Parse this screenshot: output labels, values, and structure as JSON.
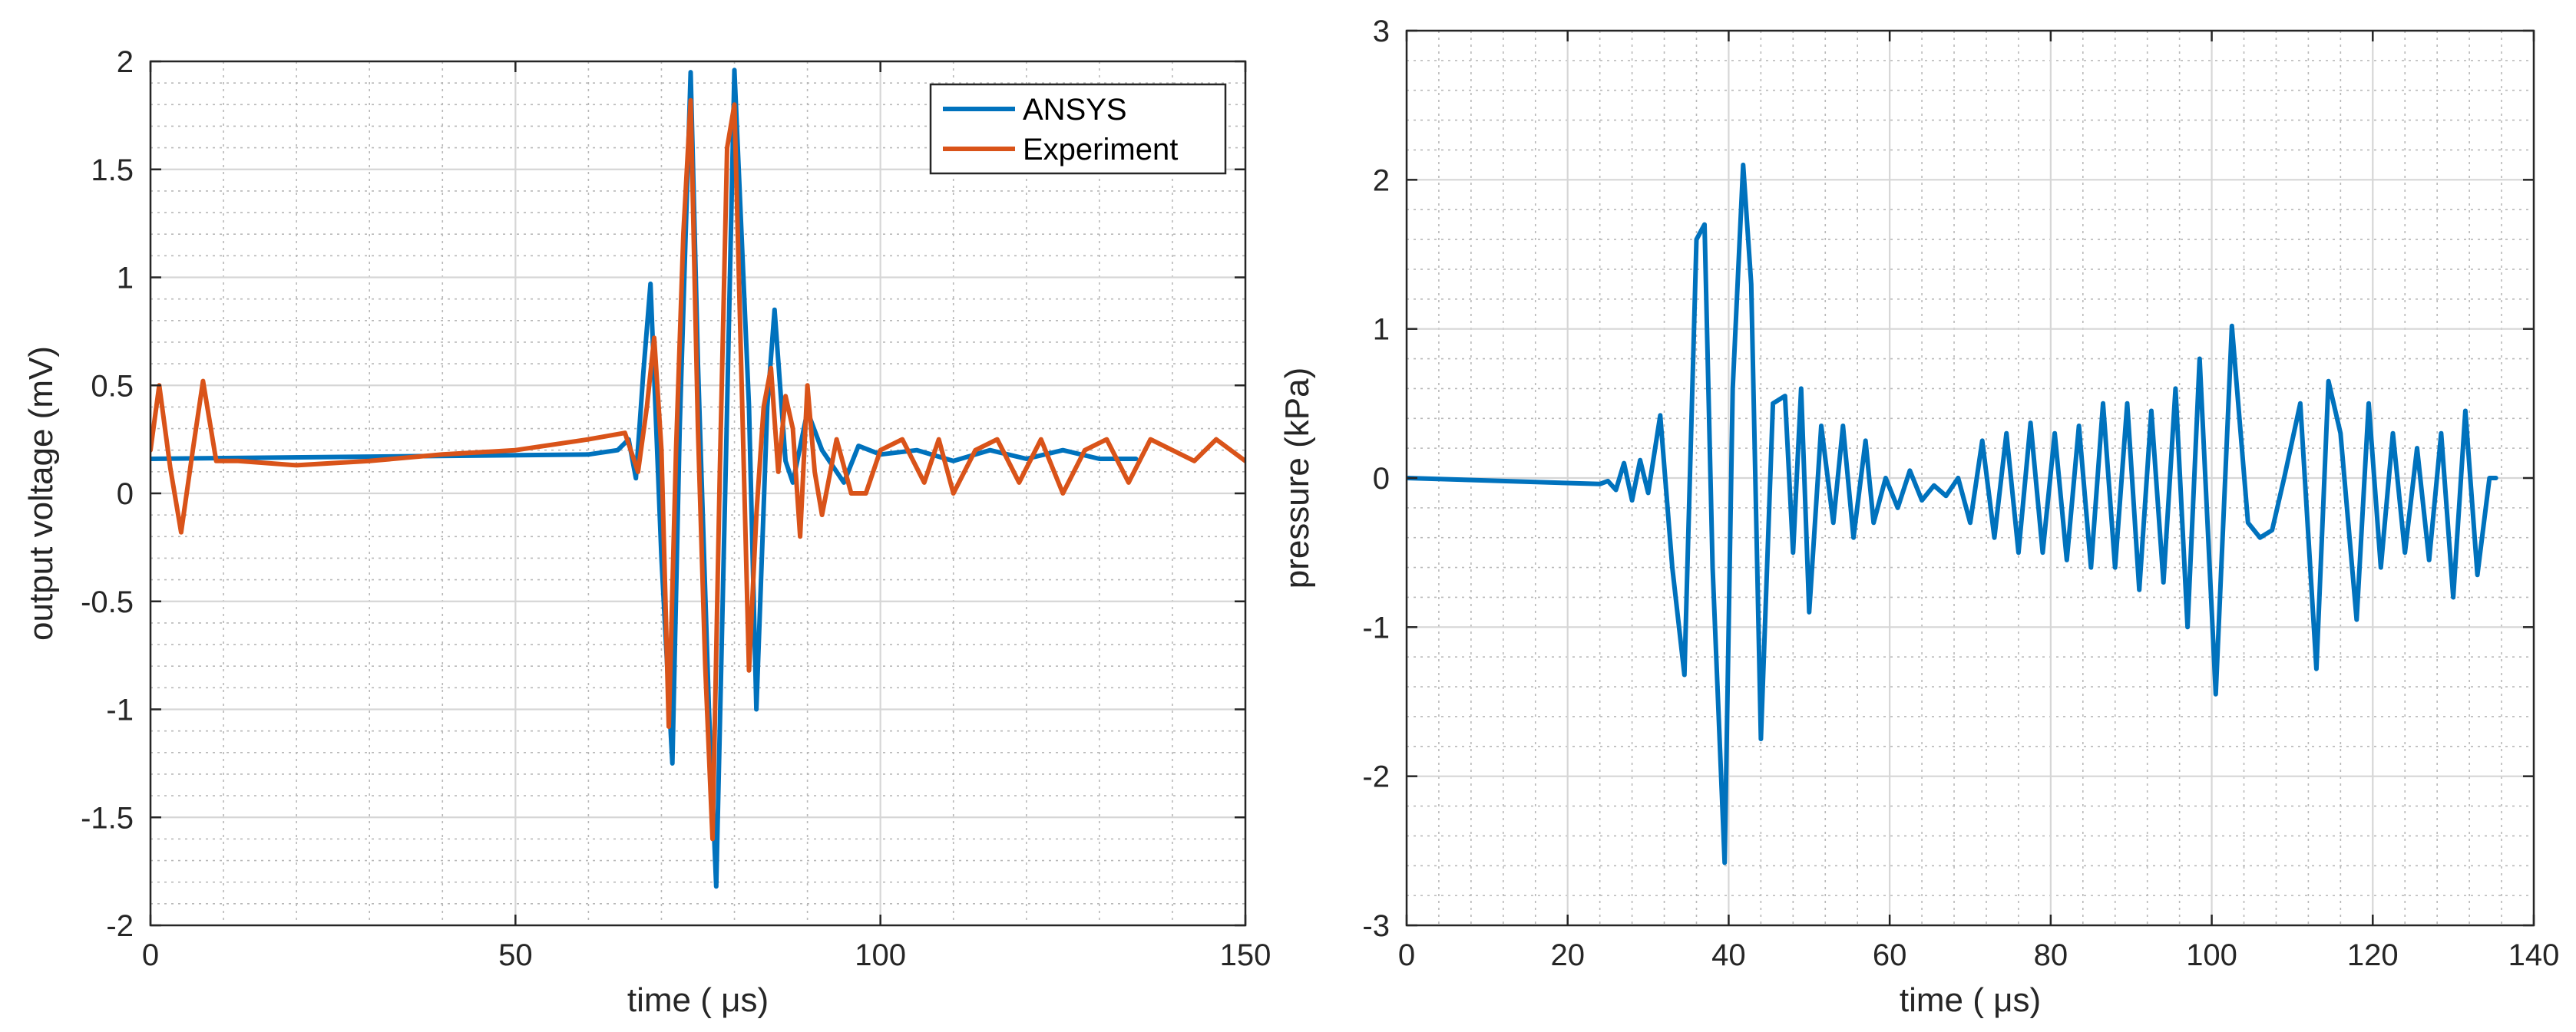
{
  "chart_data": [
    {
      "type": "line",
      "xlabel": "time ( μs)",
      "ylabel": "output voltage (mV)",
      "xlim": [
        0,
        150
      ],
      "ylim": [
        -2,
        2
      ],
      "xticks": [
        0,
        50,
        100,
        150
      ],
      "yticks": [
        -2,
        -1.5,
        -1,
        -0.5,
        0,
        0.5,
        1,
        1.5,
        2
      ],
      "xtick_labels": [
        "0",
        "50",
        "100",
        "150"
      ],
      "ytick_labels": [
        "-2",
        "-1.5",
        "-1",
        "-0.5",
        "0",
        "0.5",
        "1",
        "1.5",
        "2"
      ],
      "grid": true,
      "minor_grid": true,
      "legend": {
        "location": "top-right",
        "entries": [
          "ANSYS",
          "Experiment"
        ]
      },
      "series": [
        {
          "name": "ANSYS",
          "color": "#0072BD",
          "x": [
            0,
            60,
            64,
            65.5,
            66.5,
            67.5,
            68.5,
            70,
            71.5,
            72.5,
            74,
            75,
            76.5,
            77.5,
            79,
            80,
            82,
            83,
            84.5,
            85.5,
            87,
            88,
            90,
            92,
            95,
            97,
            100,
            105,
            110,
            115,
            120,
            125,
            130,
            135
          ],
          "values": [
            0.16,
            0.18,
            0.2,
            0.25,
            0.07,
            0.55,
            0.97,
            -0.3,
            -1.25,
            0.3,
            1.95,
            0.6,
            -1.0,
            -1.82,
            0.4,
            1.96,
            0.4,
            -1.0,
            0.4,
            0.85,
            0.15,
            0.05,
            0.38,
            0.2,
            0.05,
            0.22,
            0.18,
            0.2,
            0.15,
            0.2,
            0.16,
            0.2,
            0.16,
            0.16
          ]
        },
        {
          "name": "Experiment",
          "color": "#D95319",
          "x": [
            0,
            1.2,
            2.7,
            4.2,
            5.8,
            7.2,
            9,
            12,
            20,
            30,
            40,
            50,
            60,
            65,
            66.8,
            68,
            69,
            70,
            71,
            72,
            73,
            74,
            75,
            76,
            77,
            78,
            79,
            80,
            81,
            82,
            83,
            84,
            85,
            86,
            87,
            88,
            89,
            90,
            91,
            92,
            94,
            96,
            98,
            100,
            103,
            106,
            108,
            110,
            113,
            116,
            119,
            122,
            125,
            128,
            131,
            134,
            137,
            140,
            143,
            146,
            150
          ],
          "values": [
            0.2,
            0.5,
            0.12,
            -0.18,
            0.2,
            0.52,
            0.15,
            0.15,
            0.13,
            0.15,
            0.18,
            0.2,
            0.25,
            0.28,
            0.1,
            0.4,
            0.72,
            0.2,
            -1.08,
            0.2,
            1.2,
            1.82,
            0.3,
            -0.8,
            -1.6,
            0.1,
            1.6,
            1.8,
            0.5,
            -0.82,
            -0.1,
            0.4,
            0.58,
            0.1,
            0.45,
            0.3,
            -0.2,
            0.5,
            0.1,
            -0.1,
            0.25,
            0.0,
            0.0,
            0.2,
            0.25,
            0.05,
            0.25,
            0.0,
            0.2,
            0.25,
            0.05,
            0.25,
            0.0,
            0.2,
            0.25,
            0.05,
            0.25,
            0.2,
            0.15,
            0.25,
            0.15
          ]
        }
      ]
    },
    {
      "type": "line",
      "xlabel": "time ( μs)",
      "ylabel": "pressure (kPa)",
      "xlim": [
        0,
        140
      ],
      "ylim": [
        -3,
        3
      ],
      "xticks": [
        0,
        20,
        40,
        60,
        80,
        100,
        120,
        140
      ],
      "yticks": [
        -3,
        -2,
        -1,
        0,
        1,
        2,
        3
      ],
      "xtick_labels": [
        "0",
        "20",
        "40",
        "60",
        "80",
        "100",
        "120",
        "140"
      ],
      "ytick_labels": [
        "-3",
        "-2",
        "-1",
        "0",
        "1",
        "2",
        "3"
      ],
      "grid": true,
      "minor_grid": true,
      "legend": null,
      "series": [
        {
          "name": "pressure",
          "color": "#0072BD",
          "x": [
            0,
            24,
            25,
            26,
            27,
            28,
            29,
            30,
            31.5,
            33,
            34.5,
            36,
            37,
            38,
            39.5,
            40.5,
            41.8,
            42.8,
            44,
            45.5,
            47,
            48,
            49,
            50,
            51.5,
            53,
            54.2,
            55.5,
            57,
            58,
            59.5,
            61,
            62.5,
            64,
            65.5,
            67,
            68.5,
            70,
            71.5,
            73,
            74.5,
            76,
            77.5,
            79,
            80.5,
            82,
            83.5,
            85,
            86.5,
            88,
            89.5,
            91,
            92.5,
            94,
            95.5,
            97,
            98.5,
            100.5,
            102.5,
            104.5,
            106,
            107.5,
            109,
            111,
            113,
            114.5,
            116,
            118,
            119.5,
            121,
            122.5,
            124,
            125.5,
            127,
            128.5,
            130,
            131.5,
            133,
            134.5,
            135.3
          ],
          "values": [
            0.0,
            -0.04,
            -0.02,
            -0.08,
            0.1,
            -0.15,
            0.12,
            -0.1,
            0.42,
            -0.6,
            -1.32,
            1.6,
            1.7,
            -0.6,
            -2.58,
            0.6,
            2.1,
            1.3,
            -1.75,
            0.5,
            0.55,
            -0.5,
            0.6,
            -0.9,
            0.35,
            -0.3,
            0.35,
            -0.4,
            0.25,
            -0.3,
            0.0,
            -0.2,
            0.05,
            -0.15,
            -0.05,
            -0.12,
            0.0,
            -0.3,
            0.25,
            -0.4,
            0.3,
            -0.5,
            0.37,
            -0.5,
            0.3,
            -0.55,
            0.35,
            -0.6,
            0.5,
            -0.6,
            0.5,
            -0.75,
            0.45,
            -0.7,
            0.6,
            -1.0,
            0.8,
            -1.45,
            1.02,
            -0.3,
            -0.4,
            -0.35,
            0.0,
            0.5,
            -1.28,
            0.65,
            0.3,
            -0.95,
            0.5,
            -0.6,
            0.3,
            -0.5,
            0.2,
            -0.55,
            0.3,
            -0.8,
            0.45,
            -0.65,
            0.0,
            0.0
          ]
        }
      ]
    }
  ]
}
